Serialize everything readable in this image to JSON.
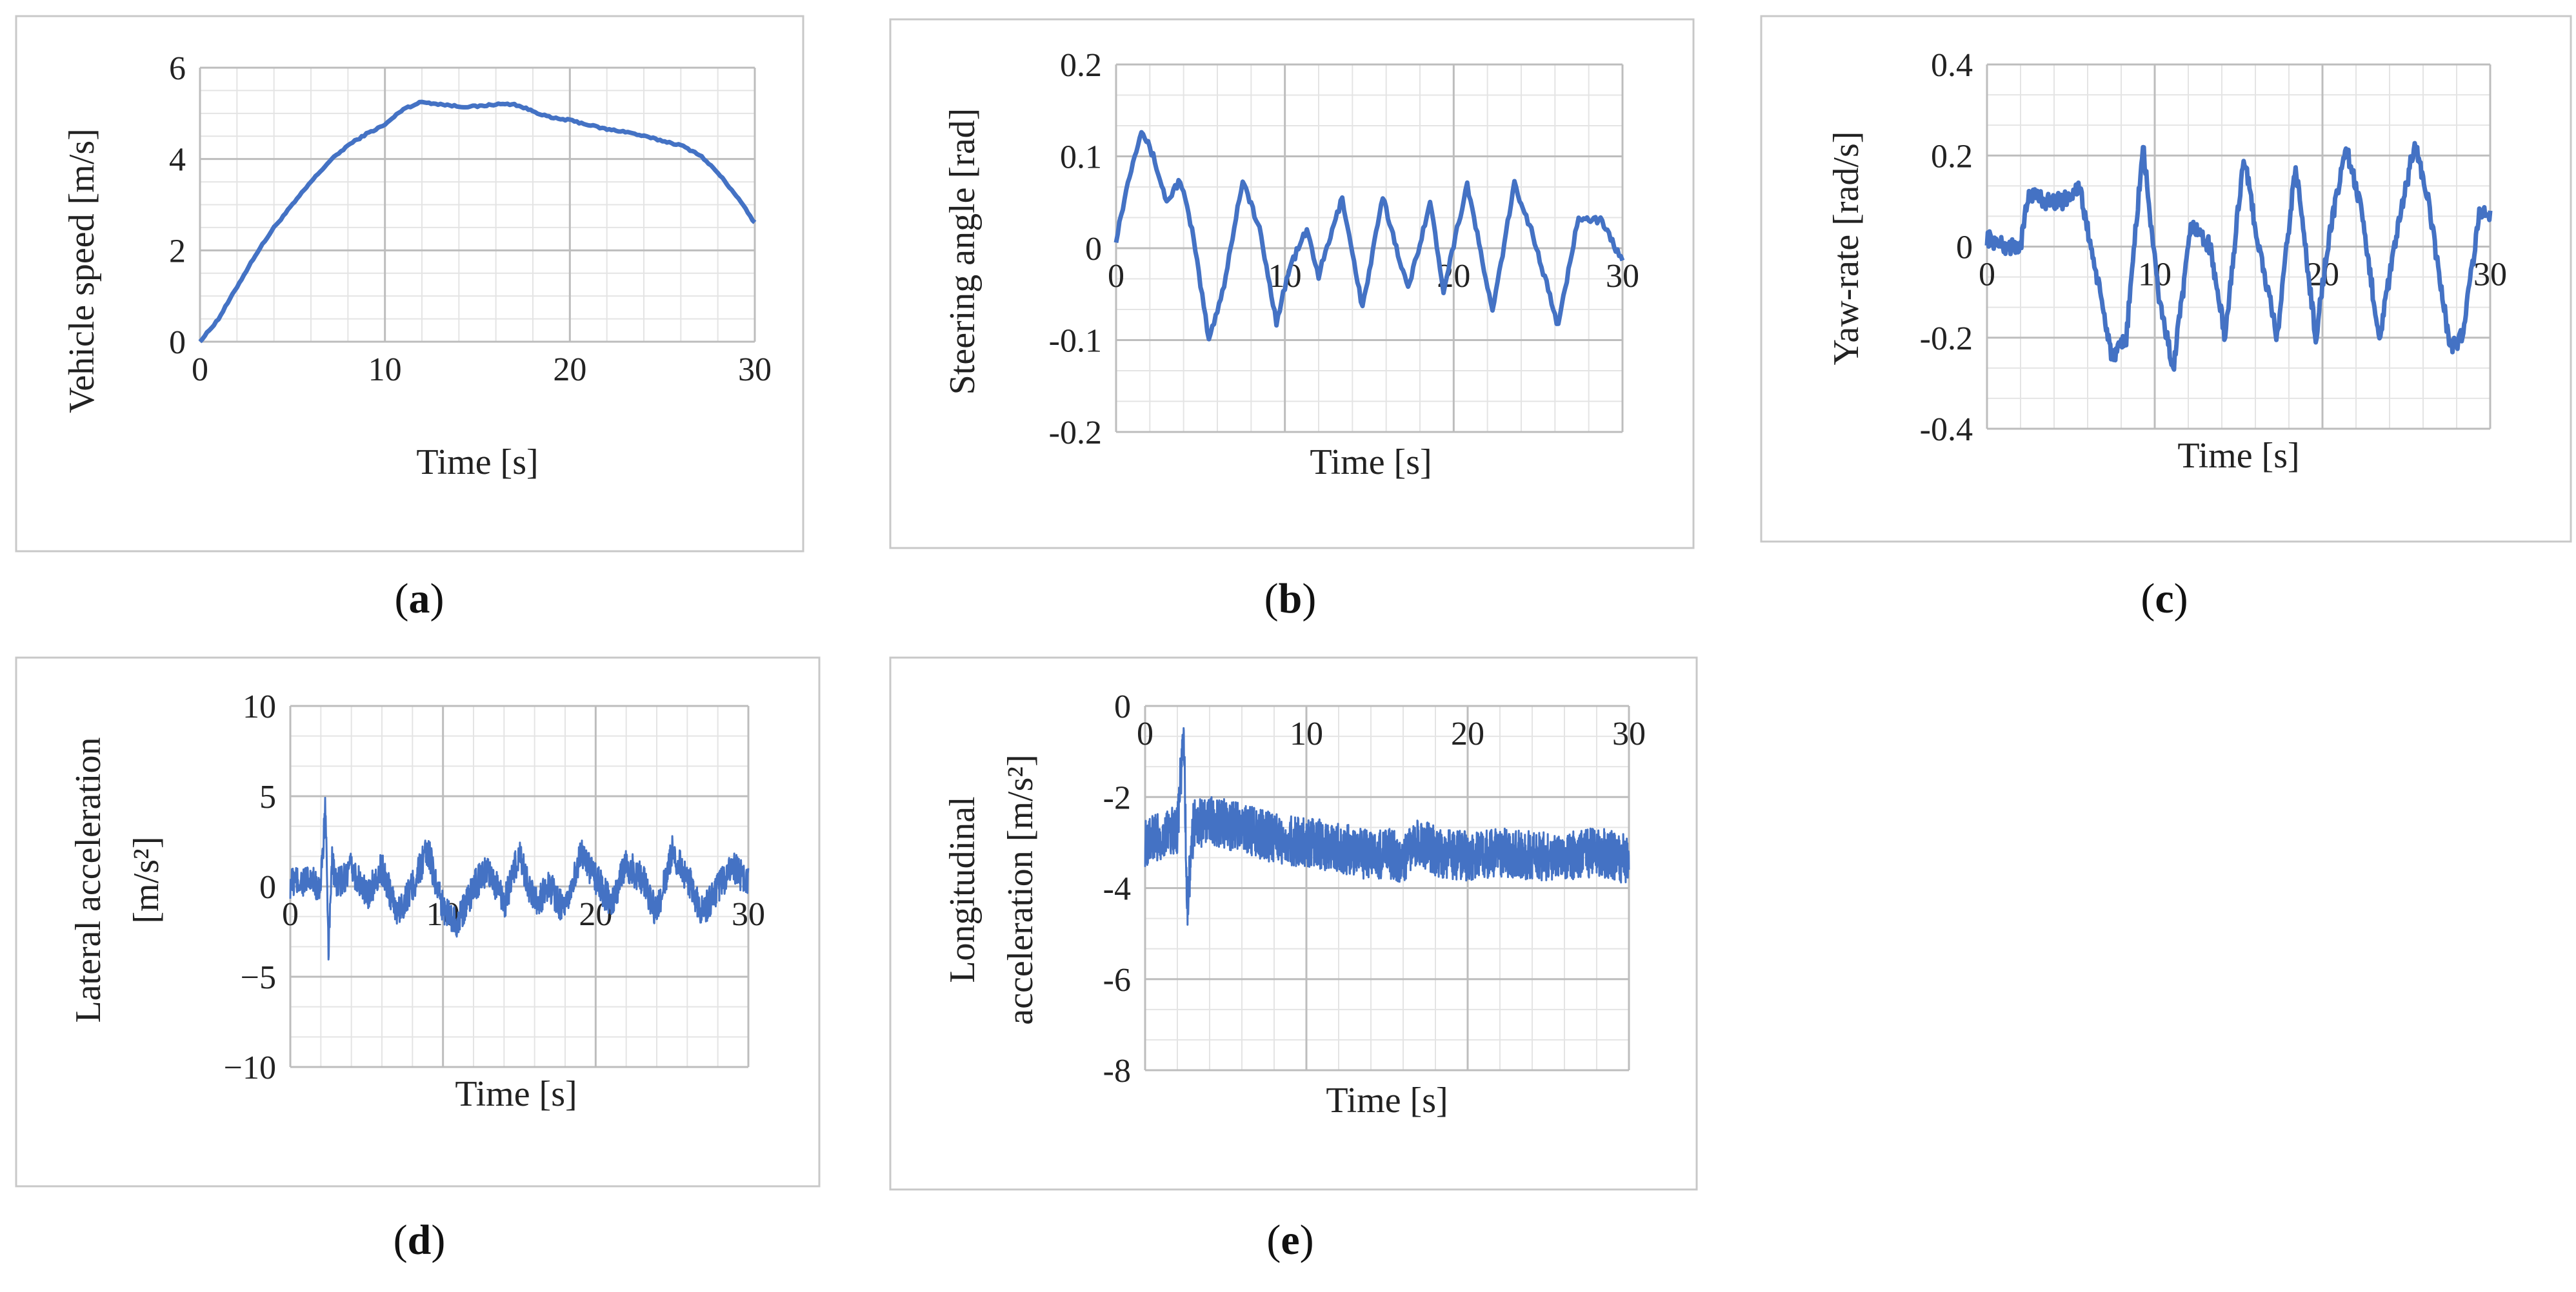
{
  "chart_data": [
    {
      "type": "line",
      "panel_label": "a",
      "xlabel": "Time [s]",
      "ylabel": "Vehicle speed [m/s]",
      "xlim": [
        0,
        30
      ],
      "ylim": [
        0,
        6
      ],
      "xticks": [
        0,
        10,
        20,
        30
      ],
      "yticks": [
        0,
        2,
        4,
        6
      ],
      "grid": true,
      "color": "#4472C4",
      "series": [
        {
          "name": "Vehicle speed",
          "x": [
            0,
            1,
            2,
            3,
            4,
            5,
            6,
            7,
            8,
            9,
            10,
            11,
            12,
            13,
            14,
            15,
            16,
            17,
            18,
            19,
            20,
            21,
            22,
            23,
            24,
            25,
            26,
            27,
            28,
            29,
            30
          ],
          "values": [
            0,
            0.5,
            1.2,
            1.9,
            2.5,
            3.0,
            3.5,
            3.95,
            4.3,
            4.55,
            4.75,
            5.1,
            5.25,
            5.2,
            5.15,
            5.15,
            5.2,
            5.2,
            5.05,
            4.9,
            4.85,
            4.75,
            4.65,
            4.6,
            4.5,
            4.4,
            4.3,
            4.1,
            3.7,
            3.2,
            2.6
          ]
        }
      ]
    },
    {
      "type": "line",
      "panel_label": "b",
      "xlabel": "Time [s]",
      "ylabel": "Steering angle [rad]",
      "xlim": [
        0,
        30
      ],
      "ylim": [
        -0.2,
        0.2
      ],
      "xticks": [
        0,
        10,
        20,
        30
      ],
      "yticks": [
        -0.2,
        -0.1,
        0,
        0.1,
        0.2
      ],
      "grid": true,
      "color": "#4472C4",
      "series": [
        {
          "name": "Steering angle",
          "x": [
            0,
            0.8,
            1.5,
            2.2,
            3,
            3.8,
            4.5,
            5.5,
            6.4,
            7.5,
            8.5,
            9.5,
            10.3,
            11.3,
            12.0,
            13.4,
            14.6,
            15.8,
            17.3,
            18.6,
            19.4,
            20.8,
            22.3,
            23.6,
            24.6,
            26.2,
            27.4,
            28.7,
            29.6,
            30
          ],
          "values": [
            0.01,
            0.08,
            0.13,
            0.1,
            0.05,
            0.075,
            0.02,
            -0.1,
            -0.04,
            0.075,
            0.02,
            -0.08,
            -0.02,
            0.02,
            -0.03,
            0.055,
            -0.065,
            0.055,
            -0.045,
            0.05,
            -0.045,
            0.07,
            -0.07,
            0.07,
            0.02,
            -0.085,
            0.035,
            0.03,
            0.0,
            -0.015
          ]
        }
      ]
    },
    {
      "type": "line",
      "panel_label": "c",
      "xlabel": "Time [s]",
      "ylabel": "Yaw-rate [rad/s]",
      "xlim": [
        0,
        30
      ],
      "ylim": [
        -0.4,
        0.4
      ],
      "xticks": [
        0,
        10,
        20,
        30
      ],
      "yticks": [
        -0.4,
        -0.2,
        0,
        0.2,
        0.4
      ],
      "grid": true,
      "color": "#4472C4",
      "series": [
        {
          "name": "Yaw-rate",
          "x": [
            0,
            1,
            2,
            2.5,
            3.5,
            4.5,
            5.5,
            6.2,
            7.5,
            8.3,
            9.3,
            10.2,
            11.1,
            12.2,
            13.3,
            14.2,
            15.3,
            16.2,
            17.3,
            18.4,
            19.6,
            20.3,
            21.4,
            22.2,
            23.4,
            24.3,
            25.5,
            26.3,
            27.6,
            28.3,
            29.4,
            30
          ],
          "values": [
            0.02,
            0.0,
            0.0,
            0.12,
            0.1,
            0.1,
            0.13,
            0.0,
            -0.25,
            -0.2,
            0.22,
            -0.1,
            -0.27,
            0.05,
            0.0,
            -0.2,
            0.2,
            0.0,
            -0.2,
            0.18,
            -0.2,
            0.0,
            0.22,
            0.1,
            -0.2,
            0.0,
            0.23,
            0.1,
            -0.22,
            -0.2,
            0.08,
            0.07
          ]
        }
      ]
    },
    {
      "type": "line",
      "panel_label": "d",
      "xlabel": "Time [s]",
      "ylabel": "Lateral acceleration [m/s²]",
      "ylabel_lines": [
        "Lateral acceleration",
        "[m/s²]"
      ],
      "xlim": [
        0,
        30
      ],
      "ylim": [
        -10,
        10
      ],
      "xticks": [
        0,
        10,
        20,
        30
      ],
      "yticks": [
        -10,
        -5,
        0,
        5,
        10
      ],
      "ytick_labels": [
        "−10",
        "−5",
        "0",
        "5",
        "10"
      ],
      "grid": true,
      "color": "#4472C4",
      "series": [
        {
          "name": "Lateral acceleration",
          "x": [
            0,
            1,
            2,
            2.3,
            2.5,
            2.7,
            3,
            4,
            5,
            6,
            7,
            8,
            9,
            10,
            11,
            12,
            13,
            14,
            15,
            16,
            17,
            18,
            19,
            20,
            21,
            22,
            23,
            24,
            25,
            26,
            27,
            28,
            29,
            30
          ],
          "values": [
            0.2,
            0.3,
            0.0,
            4.5,
            -4.0,
            1.5,
            0.0,
            1.0,
            -0.5,
            1.0,
            -1.5,
            0.0,
            2.0,
            -1.2,
            -2.0,
            0.0,
            1.0,
            -1.0,
            1.8,
            -1.0,
            0.0,
            -1.5,
            1.8,
            0.5,
            -1.0,
            1.2,
            0.5,
            -1.5,
            2.0,
            0.5,
            -1.5,
            0.0,
            1.0,
            0.3
          ]
        }
      ]
    },
    {
      "type": "line",
      "panel_label": "e",
      "xlabel": "Time [s]",
      "ylabel": "Longitudinal acceleration [m/s²]",
      "ylabel_lines": [
        "Longitudinal",
        "acceleration [m/s²]"
      ],
      "xlim": [
        0,
        30
      ],
      "ylim": [
        -8,
        0
      ],
      "xticks": [
        0,
        10,
        20,
        30
      ],
      "yticks": [
        -8,
        -6,
        -4,
        -2,
        0
      ],
      "grid": true,
      "color": "#4472C4",
      "series": [
        {
          "name": "Longitudinal acceleration",
          "x": [
            0,
            1,
            2,
            2.4,
            2.6,
            3,
            4,
            6,
            8,
            10,
            12,
            14,
            15,
            16,
            17,
            18,
            20,
            22,
            24,
            26,
            28,
            30
          ],
          "values": [
            -3.0,
            -2.9,
            -2.7,
            -0.5,
            -4.5,
            -2.6,
            -2.5,
            -2.7,
            -2.9,
            -3.0,
            -3.1,
            -3.3,
            -3.2,
            -3.4,
            -3.0,
            -3.2,
            -3.3,
            -3.2,
            -3.3,
            -3.3,
            -3.2,
            -3.4
          ]
        }
      ]
    }
  ],
  "captions": [
    "a",
    "b",
    "c",
    "d",
    "e"
  ]
}
